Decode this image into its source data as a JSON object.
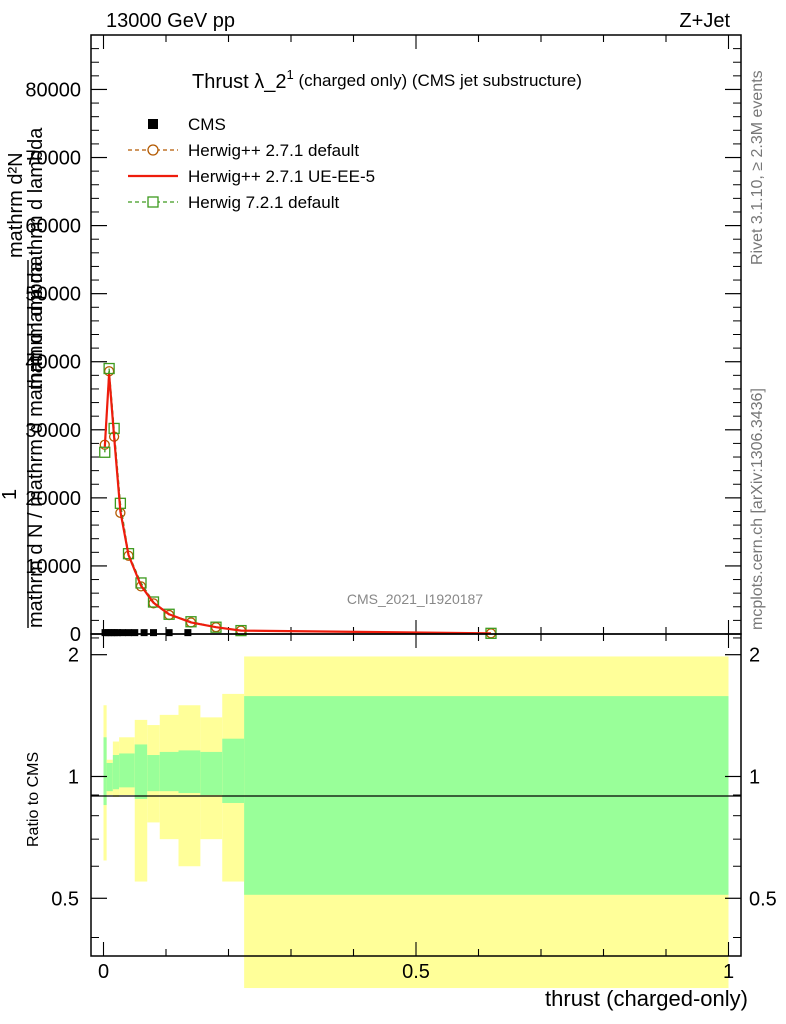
{
  "header": {
    "left": "13000 GeV pp",
    "right": "Z+Jet"
  },
  "side_texts": {
    "rivet": "Rivet 3.1.10, ≥ 2.3M events",
    "mcplots": "mcplots.cern.ch [arXiv:1306.3436]"
  },
  "chart_data": {
    "type": "line",
    "title_main": "Thrust λ_2",
    "title_sup": "1",
    "title_rest": " (charged only) (CMS jet substructure)",
    "watermark": "CMS_2021_I1920187",
    "ylabel_lines": [
      "mathrm d²N",
      "mathrm d p mathrm d lambda",
      "1",
      "mathrm d N / mathrm d mathrm d lambda"
    ],
    "ylabel_top": "mathrm d²N",
    "ylabel_mid": "mathrm d p mathrm d lambda",
    "ylabel_one": "1",
    "ylabel_bottom": "mathrm d N / mathrm d mathrm d lambda",
    "xlabel": "thrust (charged-only)",
    "ratio_ylabel": "Ratio to CMS",
    "xlim": [
      -0.02,
      1.02
    ],
    "ylim": [
      0,
      88000
    ],
    "main_yticks": [
      {
        "v": 0,
        "label": "0"
      },
      {
        "v": 10000,
        "label": "10000"
      },
      {
        "v": 20000,
        "label": "20000"
      },
      {
        "v": 30000,
        "label": "30000"
      },
      {
        "v": 40000,
        "label": "40000"
      },
      {
        "v": 50000,
        "label": "50000"
      },
      {
        "v": 60000,
        "label": "60000"
      },
      {
        "v": 70000,
        "label": "70000"
      },
      {
        "v": 80000,
        "label": "80000"
      }
    ],
    "xticks": [
      {
        "v": 0,
        "label": "0"
      },
      {
        "v": 0.5,
        "label": "0.5"
      },
      {
        "v": 1,
        "label": "1"
      }
    ],
    "ratio_ylim": [
      0.36,
      2.25
    ],
    "ratio_yticks": [
      {
        "v": 0.5,
        "label": "0.5"
      },
      {
        "v": 1,
        "label": "1"
      },
      {
        "v": 2,
        "label": "2"
      }
    ],
    "legend": [
      {
        "label": "CMS",
        "style": "cms"
      },
      {
        "label": "Herwig++ 2.7.1 default",
        "style": "circle"
      },
      {
        "label": "Herwig++ 2.7.1 UE-EE-5",
        "style": "solid"
      },
      {
        "label": "Herwig 7.2.1 default",
        "style": "square"
      }
    ],
    "legend_placement": "top-left",
    "colors": {
      "cms": "#000000",
      "herwig_default": "#b35900",
      "herwig_ueee5": "#ee1c0c",
      "herwig7": "#3d9a1e",
      "band_inner": "#99ff99",
      "band_outer": "#ffff99"
    },
    "cms_points": [
      {
        "x": 0.0025,
        "y": 200
      },
      {
        "x": 0.0075,
        "y": 200
      },
      {
        "x": 0.0125,
        "y": 200
      },
      {
        "x": 0.0175,
        "y": 200
      },
      {
        "x": 0.0225,
        "y": 200
      },
      {
        "x": 0.03,
        "y": 200
      },
      {
        "x": 0.04,
        "y": 200
      },
      {
        "x": 0.05,
        "y": 200
      },
      {
        "x": 0.065,
        "y": 200
      },
      {
        "x": 0.08,
        "y": 200
      },
      {
        "x": 0.105,
        "y": 200
      },
      {
        "x": 0.135,
        "y": 200
      }
    ],
    "series": [
      {
        "name": "Herwig++ 2.7.1 default",
        "style": "circle",
        "x": [
          0.002,
          0.009,
          0.017,
          0.027,
          0.04,
          0.06,
          0.08,
          0.105,
          0.14,
          0.18,
          0.22,
          0.62
        ],
        "y": [
          27800,
          38600,
          29000,
          17800,
          11500,
          7000,
          4500,
          2800,
          1700,
          1000,
          500,
          100
        ]
      },
      {
        "name": "Herwig++ 2.7.1 UE-EE-5",
        "style": "solid",
        "x": [
          0.002,
          0.009,
          0.017,
          0.027,
          0.04,
          0.06,
          0.08,
          0.105,
          0.14,
          0.18,
          0.22,
          0.62
        ],
        "y": [
          27500,
          38200,
          29000,
          18000,
          11600,
          7100,
          4600,
          2900,
          1700,
          1000,
          500,
          100
        ]
      },
      {
        "name": "Herwig 7.2.1 default",
        "style": "square",
        "x": [
          0.002,
          0.009,
          0.017,
          0.027,
          0.04,
          0.06,
          0.08,
          0.105,
          0.14,
          0.18,
          0.22,
          0.62
        ],
        "y": [
          26700,
          39000,
          30200,
          19200,
          11800,
          7500,
          4700,
          2900,
          1800,
          1000,
          500,
          100
        ]
      }
    ],
    "ratio_bands": [
      {
        "x0": 0.0,
        "x1": 0.005,
        "inner": [
          0.85,
          1.25
        ],
        "outer": [
          0.62,
          1.5
        ]
      },
      {
        "x0": 0.005,
        "x1": 0.015,
        "inner": [
          0.92,
          1.08
        ],
        "outer": [
          0.9,
          1.1
        ]
      },
      {
        "x0": 0.015,
        "x1": 0.025,
        "inner": [
          0.93,
          1.13
        ],
        "outer": [
          0.89,
          1.22
        ]
      },
      {
        "x0": 0.025,
        "x1": 0.05,
        "inner": [
          0.94,
          1.14
        ],
        "outer": [
          0.9,
          1.25
        ]
      },
      {
        "x0": 0.05,
        "x1": 0.07,
        "inner": [
          0.88,
          1.2
        ],
        "outer": [
          0.55,
          1.38
        ]
      },
      {
        "x0": 0.07,
        "x1": 0.09,
        "inner": [
          0.92,
          1.13
        ],
        "outer": [
          0.77,
          1.34
        ]
      },
      {
        "x0": 0.09,
        "x1": 0.12,
        "inner": [
          0.92,
          1.15
        ],
        "outer": [
          0.7,
          1.42
        ]
      },
      {
        "x0": 0.12,
        "x1": 0.155,
        "inner": [
          0.91,
          1.16
        ],
        "outer": [
          0.6,
          1.5
        ]
      },
      {
        "x0": 0.155,
        "x1": 0.19,
        "inner": [
          0.9,
          1.15
        ],
        "outer": [
          0.7,
          1.4
        ]
      },
      {
        "x0": 0.19,
        "x1": 0.225,
        "inner": [
          0.86,
          1.24
        ],
        "outer": [
          0.55,
          1.6
        ]
      },
      {
        "x0": 0.225,
        "x1": 1.0,
        "inner": [
          0.51,
          1.58
        ],
        "outer": [
          0.3,
          1.98
        ]
      }
    ]
  }
}
